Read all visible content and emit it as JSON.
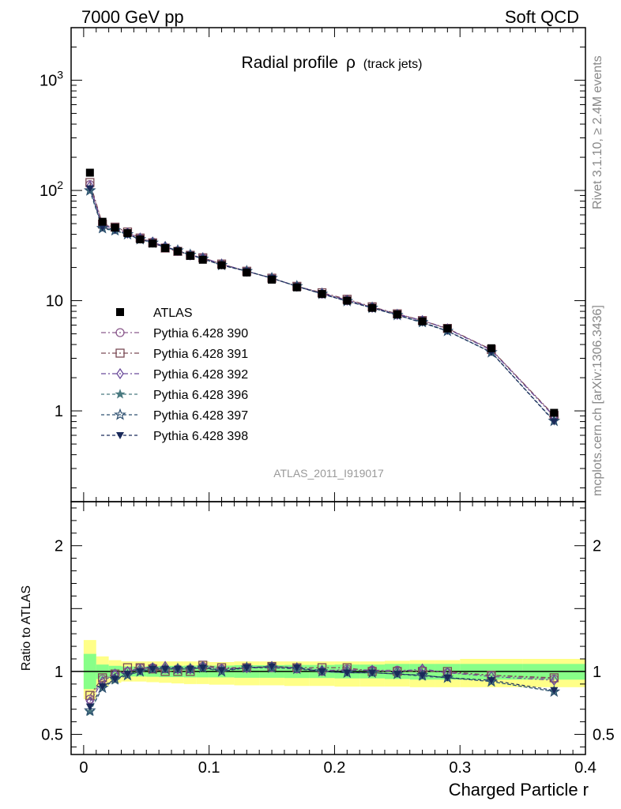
{
  "header": {
    "left": "7000 GeV pp",
    "right": "Soft QCD"
  },
  "side_labels": {
    "rivet": "Rivet 3.1.10, ≥ 2.4M events",
    "mcplots": "mcplots.cern.ch [arXiv:1306.3436]"
  },
  "colors": {
    "atlas": "#000000",
    "band_outer": "#ffff88",
    "band_inner": "#88ff88",
    "s390": "#8b5a8c",
    "s391": "#7a4a55",
    "s392": "#6a4a9a",
    "s396": "#4a7a80",
    "s397": "#2e5070",
    "s398": "#1a2a5a"
  },
  "chart_data": [
    {
      "type": "line",
      "title_main": "Radial profile",
      "title_symbol": "ρ",
      "title_sub": "(track jets)",
      "yscale": "log",
      "ylim": [
        0.15,
        3000
      ],
      "xlim": [
        -0.01,
        0.4
      ],
      "y_ticks": [
        {
          "value": 1000,
          "base": "10",
          "exp": "3"
        },
        {
          "value": 100,
          "base": "10",
          "exp": "2"
        },
        {
          "value": 10,
          "base": "10",
          "exp": ""
        },
        {
          "value": 1,
          "base": "1",
          "exp": ""
        }
      ],
      "watermark": "ATLAS_2011_I919017",
      "legend_position": "lower-left",
      "x": [
        0.005,
        0.015,
        0.025,
        0.035,
        0.045,
        0.055,
        0.065,
        0.075,
        0.085,
        0.095,
        0.11,
        0.13,
        0.15,
        0.17,
        0.19,
        0.21,
        0.23,
        0.25,
        0.27,
        0.29,
        0.325,
        0.375
      ],
      "atlas": {
        "name": "ATLAS",
        "values": [
          145,
          52,
          46,
          41,
          36,
          33,
          30,
          28,
          25.5,
          23.5,
          21,
          18,
          15.5,
          13.2,
          11.5,
          10,
          8.6,
          7.5,
          6.5,
          5.6,
          3.7,
          0.96
        ]
      },
      "series": [
        {
          "name": "Pythia 6.428 390",
          "marker": "open-circle",
          "color_key": "s390",
          "dash": "6 3 2 3",
          "values": [
            113,
            49,
            46,
            41,
            37,
            34,
            30.5,
            28.5,
            26,
            24.5,
            21.5,
            18.5,
            16,
            13.5,
            11.5,
            10.2,
            8.7,
            7.6,
            6.6,
            5.55,
            3.6,
            0.9
          ]
        },
        {
          "name": "Pythia 6.428 391",
          "marker": "open-square",
          "color_key": "s391",
          "dash": "6 3 2 3",
          "values": [
            118,
            49.5,
            46.5,
            42,
            37,
            33.5,
            30,
            28,
            25.8,
            24.5,
            21.5,
            18.5,
            16,
            13.5,
            11.8,
            10.3,
            8.8,
            7.6,
            6.6,
            5.6,
            3.6,
            0.91
          ]
        },
        {
          "name": "Pythia 6.428 392",
          "marker": "open-diamond",
          "color_key": "s392",
          "dash": "6 3 2 3",
          "values": [
            110,
            48,
            45,
            41,
            37,
            34,
            31,
            28.5,
            26,
            24.5,
            21.5,
            18.5,
            16,
            13.5,
            11.7,
            10.1,
            8.7,
            7.5,
            6.6,
            5.55,
            3.55,
            0.89
          ]
        },
        {
          "name": "Pythia 6.428 396",
          "marker": "filled-star",
          "color_key": "s396",
          "dash": "4 3",
          "values": [
            99,
            45,
            43,
            40,
            36,
            33.5,
            30.5,
            28.5,
            26,
            24,
            21,
            18.5,
            16,
            13.5,
            11.5,
            9.9,
            8.6,
            7.4,
            6.3,
            5.3,
            3.4,
            0.81
          ]
        },
        {
          "name": "Pythia 6.428 397",
          "marker": "open-star",
          "color_key": "s397",
          "dash": "4 3",
          "values": [
            100,
            45.5,
            43.5,
            40,
            36,
            33.5,
            30.5,
            28.5,
            26,
            24,
            21,
            18.5,
            16,
            13.5,
            11.5,
            9.9,
            8.6,
            7.4,
            6.4,
            5.3,
            3.4,
            0.81
          ]
        },
        {
          "name": "Pythia 6.428 398",
          "marker": "filled-triangle-down",
          "color_key": "s398",
          "dash": "4 3",
          "values": [
            104,
            46,
            43.5,
            40,
            36,
            33.5,
            30.5,
            28.5,
            26,
            24,
            21,
            18.5,
            16,
            13.5,
            11.5,
            9.9,
            8.6,
            7.4,
            6.3,
            5.3,
            3.4,
            0.8
          ]
        }
      ]
    },
    {
      "type": "line",
      "ylabel": "Ratio to ATLAS",
      "xlabel": "Charged Particle r",
      "ylim": [
        0.34,
        2.35
      ],
      "xlim": [
        -0.01,
        0.4
      ],
      "y_ticks": [
        {
          "value": 2,
          "label": "2"
        },
        {
          "value": 1,
          "label": "1"
        },
        {
          "value": 0.5,
          "label": "0.5"
        }
      ],
      "x_ticks": [
        {
          "value": 0,
          "label": "0"
        },
        {
          "value": 0.1,
          "label": "0.1"
        },
        {
          "value": 0.2,
          "label": "0.2"
        },
        {
          "value": 0.3,
          "label": "0.3"
        },
        {
          "value": 0.4,
          "label": "0.4"
        }
      ],
      "x": [
        0.005,
        0.015,
        0.025,
        0.035,
        0.045,
        0.055,
        0.065,
        0.075,
        0.085,
        0.095,
        0.11,
        0.13,
        0.15,
        0.17,
        0.19,
        0.21,
        0.23,
        0.25,
        0.27,
        0.29,
        0.325,
        0.375
      ],
      "band_edges": [
        0,
        0.01,
        0.02,
        0.03,
        0.04,
        0.05,
        0.06,
        0.07,
        0.08,
        0.09,
        0.1,
        0.12,
        0.14,
        0.16,
        0.18,
        0.2,
        0.22,
        0.24,
        0.26,
        0.28,
        0.3,
        0.35,
        0.4
      ],
      "band_outer": [
        [
          0.78,
          1.25
        ],
        [
          0.88,
          1.12
        ],
        [
          0.91,
          1.09
        ],
        [
          0.92,
          1.08
        ],
        [
          0.92,
          1.08
        ],
        [
          0.915,
          1.08
        ],
        [
          0.91,
          1.08
        ],
        [
          0.905,
          1.08
        ],
        [
          0.9,
          1.08
        ],
        [
          0.9,
          1.08
        ],
        [
          0.895,
          1.075
        ],
        [
          0.89,
          1.08
        ],
        [
          0.89,
          1.08
        ],
        [
          0.885,
          1.08
        ],
        [
          0.885,
          1.08
        ],
        [
          0.88,
          1.08
        ],
        [
          0.88,
          1.08
        ],
        [
          0.88,
          1.085
        ],
        [
          0.875,
          1.09
        ],
        [
          0.875,
          1.09
        ],
        [
          0.875,
          1.1
        ],
        [
          0.875,
          1.1
        ]
      ],
      "band_inner": [
        [
          0.86,
          1.14
        ],
        [
          0.94,
          1.055
        ],
        [
          0.955,
          1.045
        ],
        [
          0.96,
          1.04
        ],
        [
          0.96,
          1.04
        ],
        [
          0.958,
          1.042
        ],
        [
          0.955,
          1.045
        ],
        [
          0.955,
          1.045
        ],
        [
          0.953,
          1.047
        ],
        [
          0.953,
          1.047
        ],
        [
          0.953,
          1.047
        ],
        [
          0.95,
          1.05
        ],
        [
          0.95,
          1.05
        ],
        [
          0.948,
          1.052
        ],
        [
          0.948,
          1.052
        ],
        [
          0.945,
          1.055
        ],
        [
          0.945,
          1.055
        ],
        [
          0.94,
          1.06
        ],
        [
          0.935,
          1.06
        ],
        [
          0.935,
          1.06
        ],
        [
          0.935,
          1.06
        ],
        [
          0.935,
          1.06
        ]
      ],
      "series": [
        {
          "name": "Pythia 6.428 390",
          "marker": "open-circle",
          "color_key": "s390",
          "dash": "6 3 2 3",
          "values": [
            0.78,
            0.94,
            0.97,
            1.0,
            1.03,
            1.03,
            1.02,
            1.02,
            1.02,
            1.04,
            1.02,
            1.03,
            1.03,
            1.02,
            1.0,
            1.02,
            1.01,
            1.01,
            1.01,
            0.99,
            0.97,
            0.94
          ]
        },
        {
          "name": "Pythia 6.428 391",
          "marker": "open-square",
          "color_key": "s391",
          "dash": "6 3 2 3",
          "values": [
            0.81,
            0.95,
            0.98,
            1.03,
            1.03,
            1.02,
            1.0,
            1.0,
            1.0,
            1.05,
            1.03,
            1.03,
            1.04,
            1.03,
            1.03,
            1.03,
            1.0,
            1.0,
            1.0,
            1.0,
            0.97,
            0.95
          ]
        },
        {
          "name": "Pythia 6.428 392",
          "marker": "open-diamond",
          "color_key": "s392",
          "dash": "6 3 2 3",
          "values": [
            0.76,
            0.92,
            0.98,
            1.0,
            1.02,
            1.03,
            1.04,
            1.02,
            1.02,
            1.04,
            1.02,
            1.03,
            1.04,
            1.03,
            1.01,
            1.01,
            1.01,
            1.0,
            1.02,
            0.99,
            0.96,
            0.93
          ]
        },
        {
          "name": "Pythia 6.428 396",
          "marker": "filled-star",
          "color_key": "s396",
          "dash": "4 3",
          "values": [
            0.68,
            0.87,
            0.93,
            0.97,
            1.0,
            1.02,
            1.02,
            1.02,
            1.02,
            1.03,
            1.0,
            1.03,
            1.03,
            1.02,
            1.0,
            0.99,
            0.99,
            0.98,
            0.96,
            0.95,
            0.92,
            0.84
          ]
        },
        {
          "name": "Pythia 6.428 397",
          "marker": "open-star",
          "color_key": "s397",
          "dash": "4 3",
          "values": [
            0.69,
            0.87,
            0.94,
            0.97,
            1.0,
            1.02,
            1.02,
            1.02,
            1.02,
            1.03,
            1.0,
            1.03,
            1.03,
            1.02,
            1.0,
            0.99,
            0.99,
            0.98,
            0.97,
            0.95,
            0.92,
            0.84
          ]
        },
        {
          "name": "Pythia 6.428 398",
          "marker": "filled-triangle-down",
          "color_key": "s398",
          "dash": "4 3",
          "values": [
            0.72,
            0.88,
            0.94,
            0.98,
            1.0,
            1.02,
            1.02,
            1.02,
            1.02,
            1.03,
            1.01,
            1.03,
            1.04,
            1.03,
            1.0,
            0.99,
            0.99,
            0.98,
            0.97,
            0.95,
            0.93,
            0.85
          ]
        }
      ]
    }
  ]
}
